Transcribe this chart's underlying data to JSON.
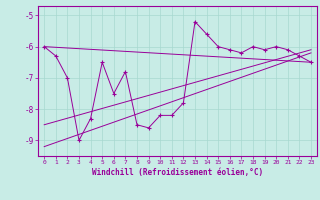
{
  "xlabel": "Windchill (Refroidissement éolien,°C)",
  "background_color": "#c8ece6",
  "line_color": "#990099",
  "marker": "+",
  "xlim": [
    -0.5,
    23.5
  ],
  "ylim": [
    -9.5,
    -4.7
  ],
  "yticks": [
    -9,
    -8,
    -7,
    -6,
    -5
  ],
  "xticks": [
    0,
    1,
    2,
    3,
    4,
    5,
    6,
    7,
    8,
    9,
    10,
    11,
    12,
    13,
    14,
    15,
    16,
    17,
    18,
    19,
    20,
    21,
    22,
    23
  ],
  "grid_color": "#a8d8d0",
  "series": [
    [
      0,
      -6.0
    ],
    [
      1,
      -6.3
    ],
    [
      2,
      -7.0
    ],
    [
      3,
      -9.0
    ],
    [
      4,
      -8.3
    ],
    [
      5,
      -6.5
    ],
    [
      6,
      -7.5
    ],
    [
      7,
      -6.8
    ],
    [
      8,
      -8.5
    ],
    [
      9,
      -8.6
    ],
    [
      10,
      -8.2
    ],
    [
      11,
      -8.2
    ],
    [
      12,
      -7.8
    ],
    [
      13,
      -5.2
    ],
    [
      14,
      -5.6
    ],
    [
      15,
      -6.0
    ],
    [
      16,
      -6.1
    ],
    [
      17,
      -6.2
    ],
    [
      18,
      -6.0
    ],
    [
      19,
      -6.1
    ],
    [
      20,
      -6.0
    ],
    [
      21,
      -6.1
    ],
    [
      22,
      -6.3
    ],
    [
      23,
      -6.5
    ]
  ],
  "regression_lines": [
    {
      "x": [
        0,
        23
      ],
      "y": [
        -6.0,
        -6.5
      ]
    },
    {
      "x": [
        0,
        23
      ],
      "y": [
        -8.5,
        -6.1
      ]
    },
    {
      "x": [
        0,
        23
      ],
      "y": [
        -9.2,
        -6.2
      ]
    }
  ]
}
